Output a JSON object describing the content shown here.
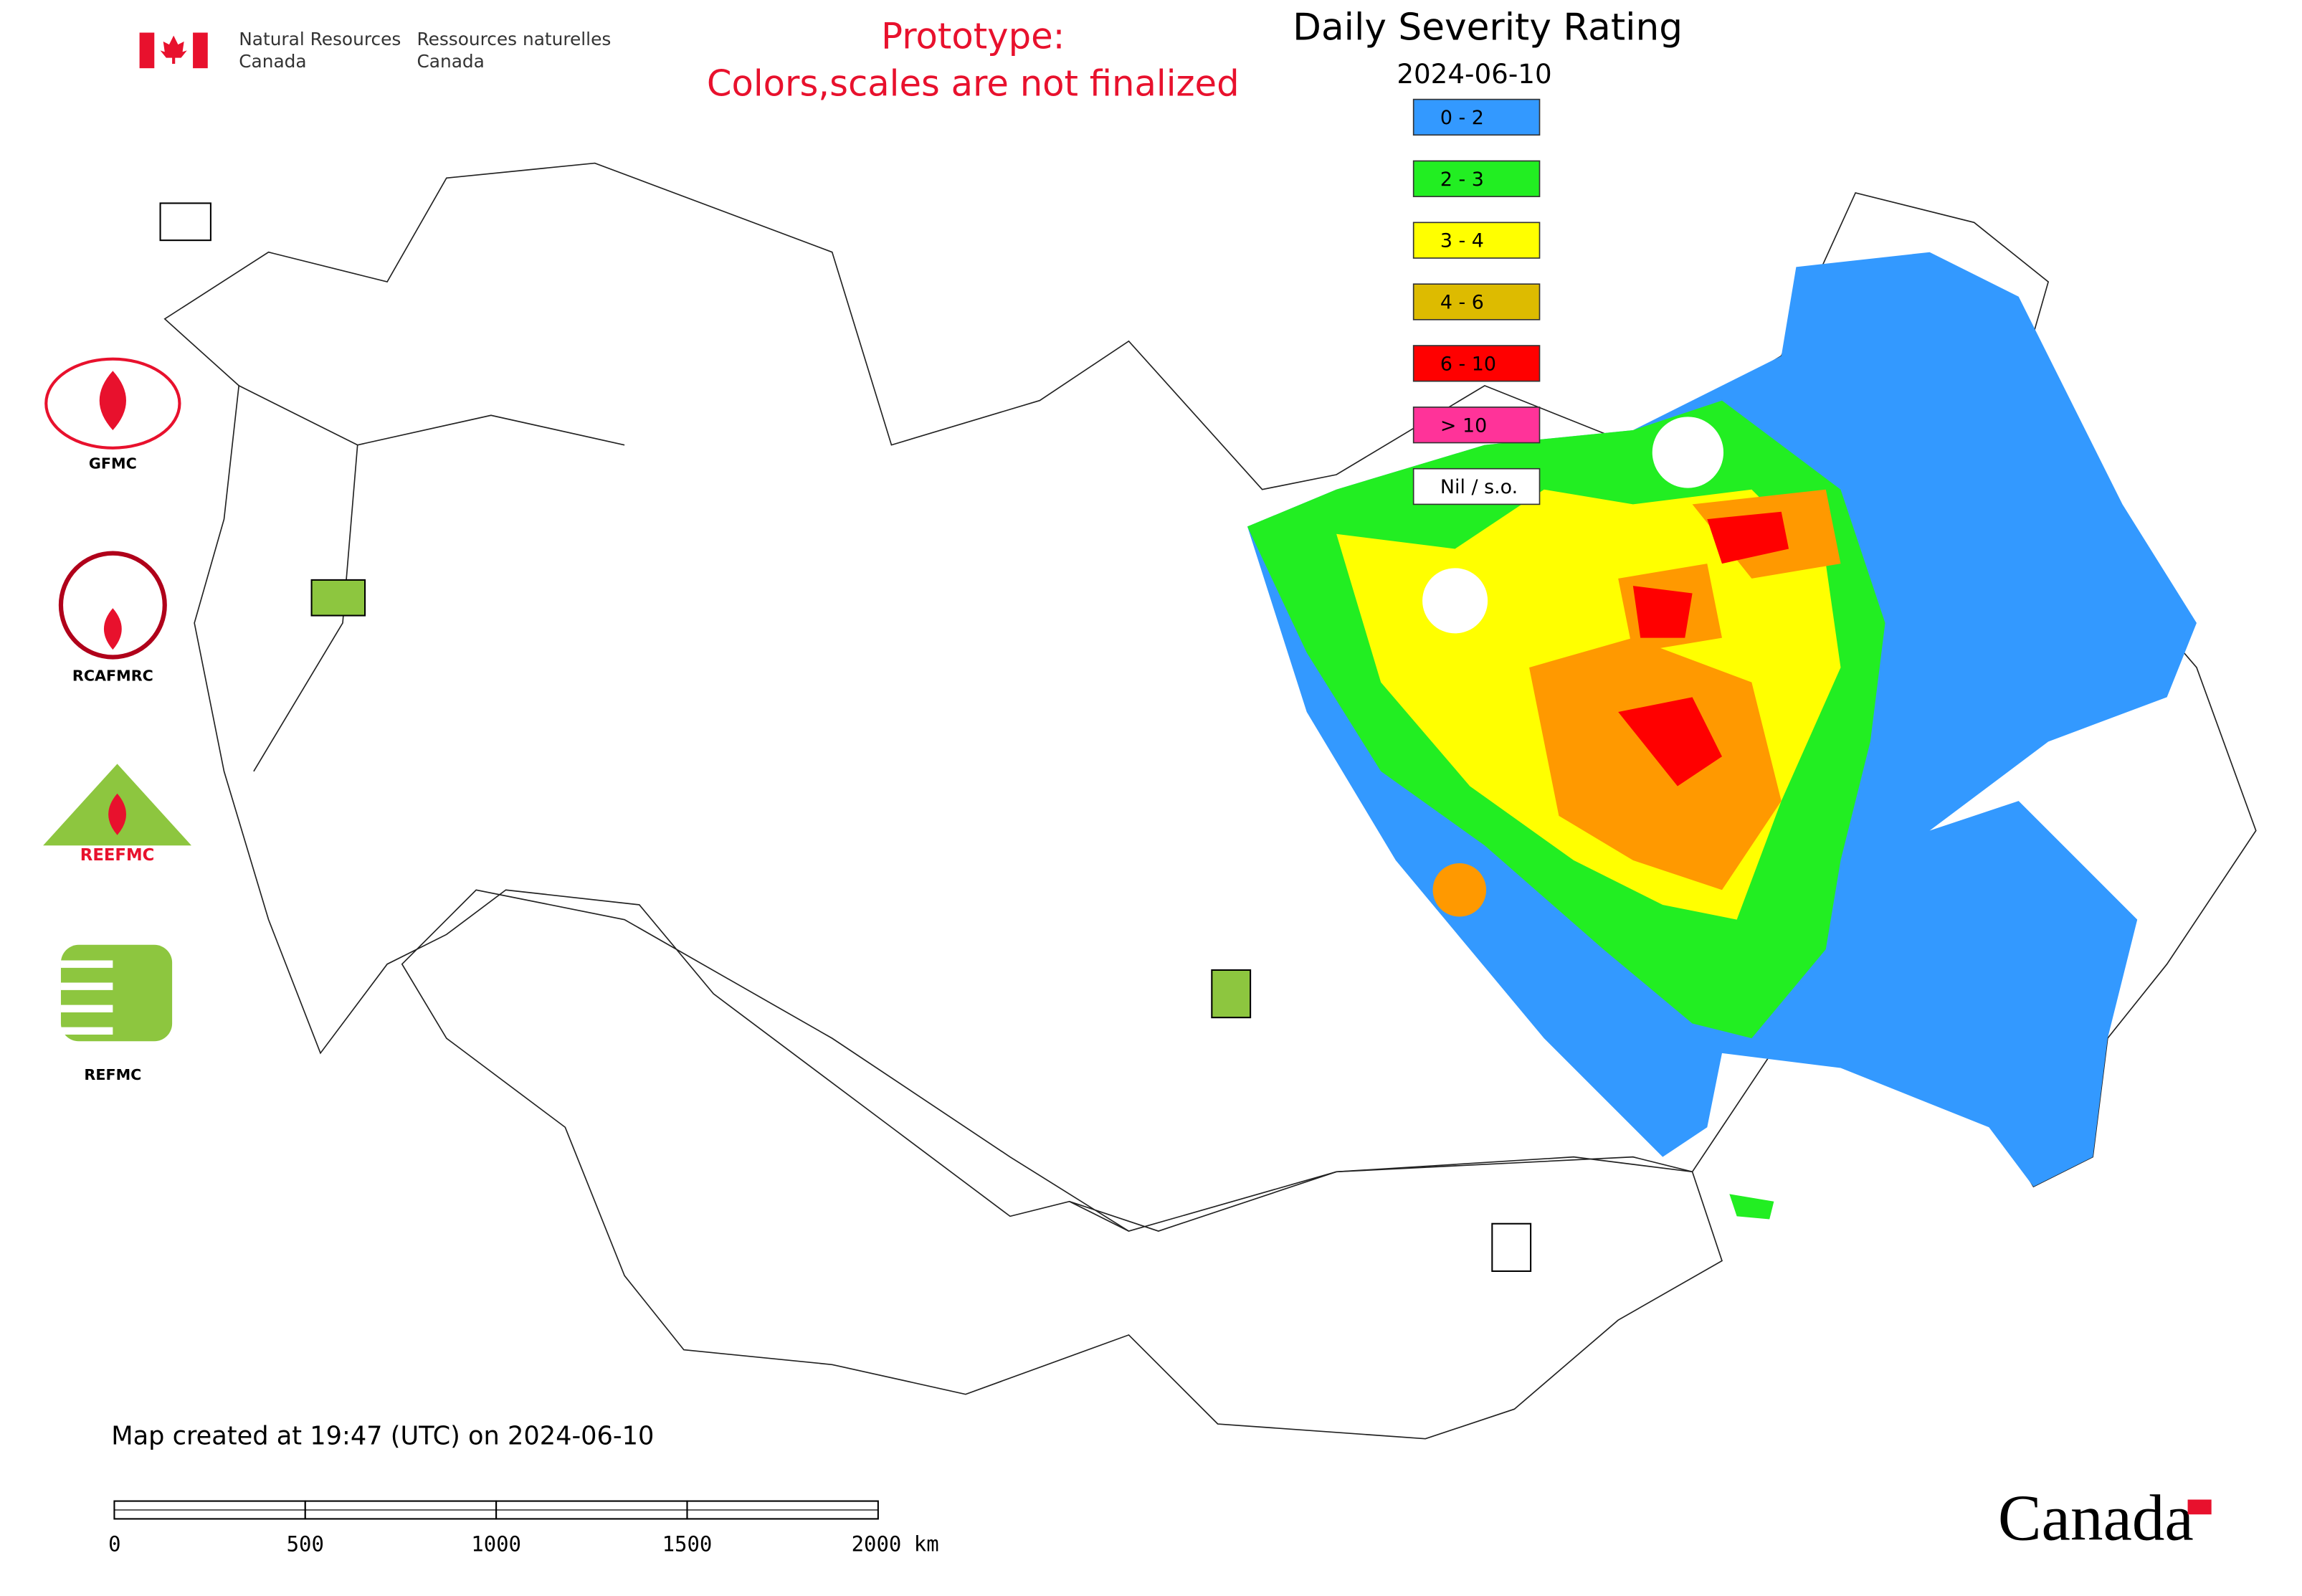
{
  "header": {
    "dept_en": [
      "Natural Resources",
      "Canada"
    ],
    "dept_fr": [
      "Ressources naturelles",
      "Canada"
    ]
  },
  "notice": [
    "Prototype:",
    "Colors,scales are not finalized"
  ],
  "title": "Daily Severity Rating",
  "date": "2024-06-10",
  "legend": [
    {
      "label": "0 - 2",
      "color": "#3399ff"
    },
    {
      "label": "2 - 3",
      "color": "#22ee22"
    },
    {
      "label": "3 - 4",
      "color": "#ffff00"
    },
    {
      "label": "4 - 6",
      "color": "#ddbb00"
    },
    {
      "label": "6 - 10",
      "color": "#ff0000"
    },
    {
      "label": "> 10",
      "color": "#ff3399"
    },
    {
      "label": "Nil / s.o.",
      "color": "#ffffff"
    }
  ],
  "logos": [
    "GFMC",
    "RCAFMRC",
    "REEFMC",
    "REFMC"
  ],
  "footer": "Map created at 19:47 (UTC) on 2024-06-10",
  "scale_bar": [
    "0",
    "500",
    "1000",
    "1500",
    "2000 km"
  ],
  "wordmark": "Canada"
}
